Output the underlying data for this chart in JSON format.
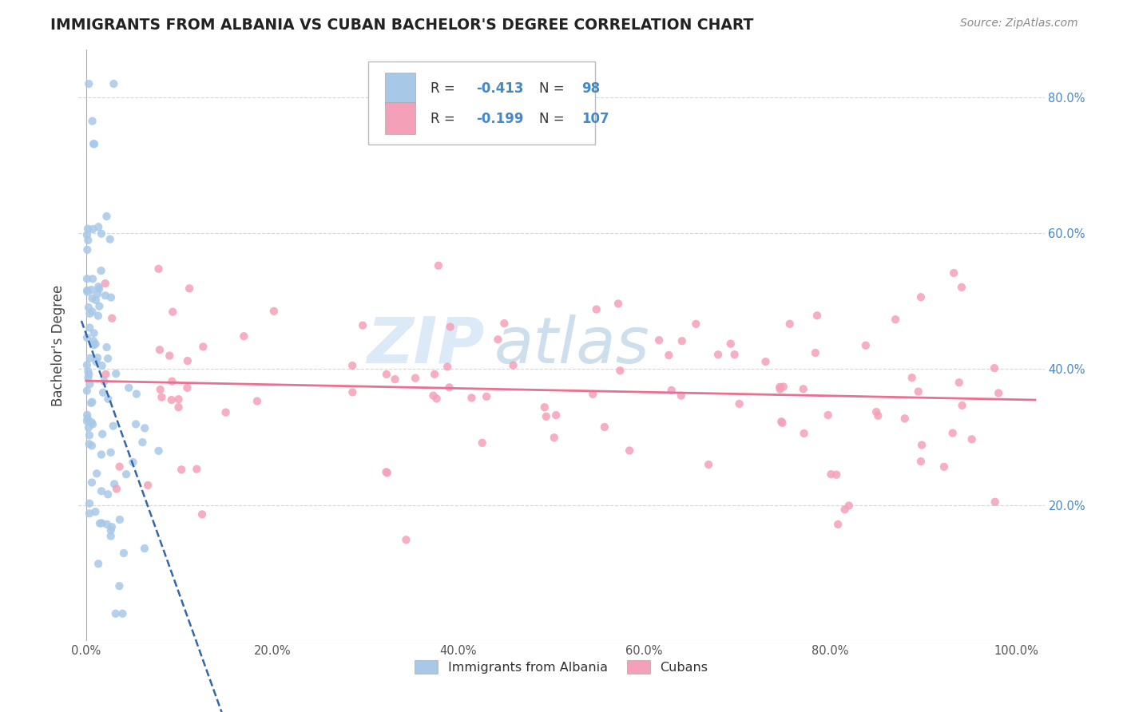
{
  "title": "IMMIGRANTS FROM ALBANIA VS CUBAN BACHELOR'S DEGREE CORRELATION CHART",
  "source": "Source: ZipAtlas.com",
  "ylabel": "Bachelor's Degree",
  "legend_label1": "Immigrants from Albania",
  "legend_label2": "Cubans",
  "r1": -0.413,
  "n1": 98,
  "r2": -0.199,
  "n2": 107,
  "color1": "#a8c8e8",
  "color2": "#f4a0b8",
  "line1_color": "#3366aa",
  "line2_color": "#e87090",
  "watermark_zip": "ZIP",
  "watermark_atlas": "atlas",
  "bg_color": "#ffffff",
  "grid_color": "#cccccc",
  "title_color": "#222222",
  "source_color": "#888888",
  "tick_color": "#555555",
  "right_tick_color": "#4488cc",
  "ylabel_color": "#444444",
  "legend_text_color": "#333333",
  "legend_value_color": "#4488cc",
  "watermark_zip_color": "#c0d8f0",
  "watermark_atlas_color": "#90b8d8"
}
